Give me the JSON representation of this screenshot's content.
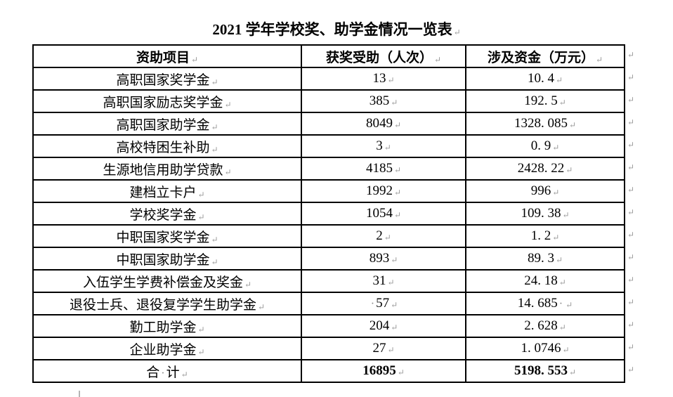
{
  "page": {
    "title": "2021 学年学校奖、助学金情况一览表"
  },
  "marks": {
    "return_mark": "↵",
    "space_dot": "·"
  },
  "table": {
    "headers": [
      {
        "label": "资助项目"
      },
      {
        "label": "获奖受助（人次）"
      },
      {
        "label": "涉及资金（万元）"
      }
    ],
    "rows": [
      {
        "project": "高职国家奖学金",
        "count": "13",
        "amount": "10. 4"
      },
      {
        "project": "高职国家励志奖学金",
        "count": "385",
        "amount": "192. 5"
      },
      {
        "project": "高职国家助学金",
        "count": "8049",
        "amount": "1328. 085"
      },
      {
        "project": "高校特困生补助",
        "count": "3",
        "amount": "0. 9"
      },
      {
        "project": "生源地信用助学贷款",
        "count": "4185",
        "amount": "2428. 22"
      },
      {
        "project": "建档立卡户",
        "count": "1992",
        "amount": "996"
      },
      {
        "project": "学校奖学金",
        "count": "1054",
        "amount": "109. 38"
      },
      {
        "project": "中职国家奖学金",
        "count": "2",
        "amount": "1. 2"
      },
      {
        "project": "中职国家助学金",
        "count": "893",
        "amount": "89. 3"
      },
      {
        "project": "入伍学生学费补偿金及奖金",
        "count": "31",
        "amount": "24. 18"
      },
      {
        "project": "退役士兵、退役复学学生助学金",
        "count": "57",
        "amount": "14. 685",
        "count_lead_dot": true,
        "amount_trail_dot": true
      },
      {
        "project": "勤工助学金",
        "count": "204",
        "amount": "2. 628"
      },
      {
        "project": "企业助学金",
        "count": "27",
        "amount": "1. 0746"
      },
      {
        "project": "合 计",
        "count": "16895",
        "amount": "5198. 553",
        "project_space_dot": true,
        "bold_numbers": true
      }
    ]
  }
}
